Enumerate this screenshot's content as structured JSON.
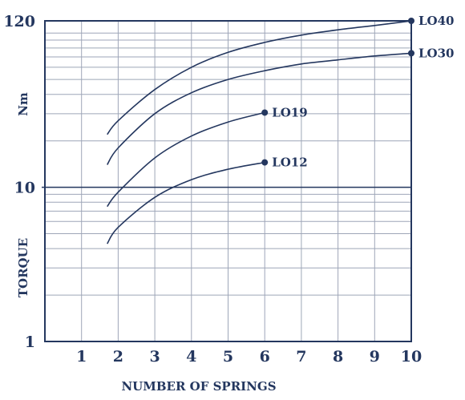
{
  "chart_data": {
    "type": "line",
    "xlabel": "NUMBER OF SPRINGS",
    "ylabel": "TORQUE",
    "yunit": "Nm",
    "x_ticks": [
      "1",
      "2",
      "3",
      "4",
      "5",
      "6",
      "7",
      "8",
      "9",
      "10"
    ],
    "y_ticks": [
      "1",
      "10",
      "120"
    ],
    "xlim": [
      0,
      10
    ],
    "ylim": [
      1,
      120
    ],
    "y_scale": "log",
    "grid": true,
    "color": "#24375f",
    "series": [
      {
        "name": "LO40",
        "x": [
          1.7,
          2,
          3,
          4,
          5,
          6,
          7,
          8,
          9,
          10
        ],
        "y": [
          22,
          27,
          43,
          60,
          75,
          87,
          97,
          105,
          112,
          120
        ]
      },
      {
        "name": "LO30",
        "x": [
          1.7,
          2,
          3,
          4,
          5,
          6,
          7,
          8,
          9,
          10
        ],
        "y": [
          14,
          18,
          30,
          41,
          50,
          57,
          63,
          67,
          71,
          74
        ]
      },
      {
        "name": "LO19",
        "x": [
          1.7,
          2,
          3,
          4,
          5,
          6
        ],
        "y": [
          7.5,
          9.3,
          15.5,
          21.5,
          26.5,
          30.5
        ]
      },
      {
        "name": "LO12",
        "x": [
          1.7,
          2,
          3,
          4,
          5,
          6
        ],
        "y": [
          4.3,
          5.5,
          8.6,
          11.2,
          13.1,
          14.5
        ]
      }
    ]
  }
}
